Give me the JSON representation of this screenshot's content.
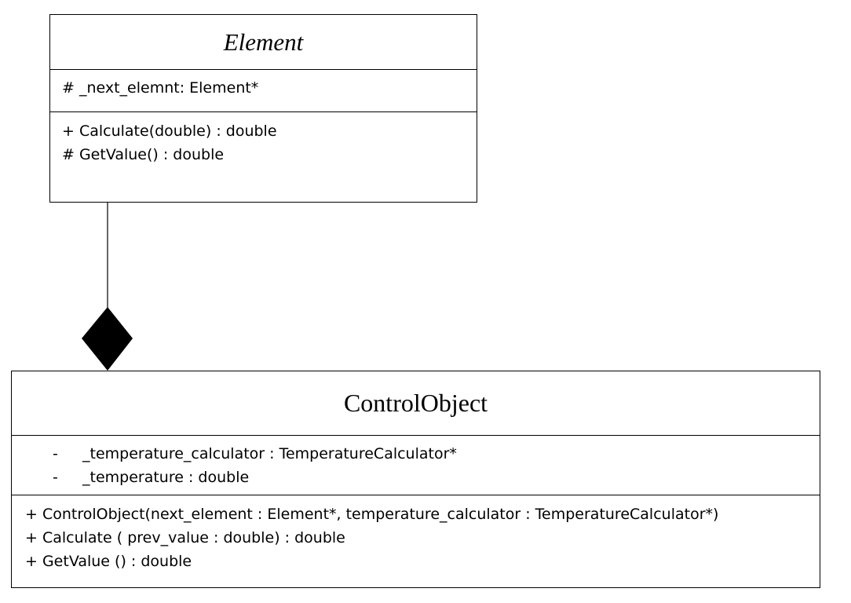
{
  "element_class": {
    "name": "Element",
    "attributes": [
      "# _next_elemnt: Element*"
    ],
    "operations": [
      "+ Calculate(double) : double",
      "# GetValue() : double"
    ]
  },
  "control_object_class": {
    "name": "ControlObject",
    "attributes": [
      {
        "bullet": "-",
        "text": "_temperature_calculator : TemperatureCalculator*"
      },
      {
        "bullet": "-",
        "text": "_temperature : double"
      }
    ],
    "operations": [
      "+ ControlObject(next_element : Element*, temperature_calculator : TemperatureCalculator*)",
      "+ Calculate ( prev_value : double) : double",
      "+ GetValue () : double"
    ]
  },
  "relationship": {
    "type": "composition",
    "marker": "filled-diamond",
    "color": "#000000"
  }
}
